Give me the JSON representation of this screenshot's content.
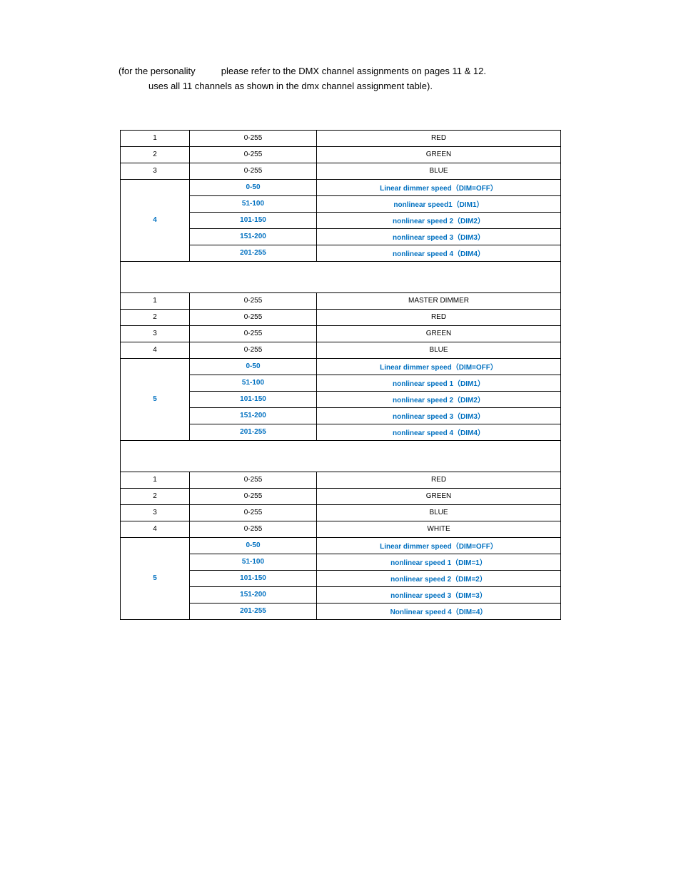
{
  "intro": {
    "line1a": "(for the personality",
    "line1b": "please refer to the DMX channel assignments on pages 11 & 12.",
    "line2": "uses all 11 channels as shown in the dmx channel assignment table)."
  },
  "colors": {
    "accent": "#0070c0",
    "text": "#000000",
    "border": "#000000",
    "bg": "#ffffff"
  },
  "section1": {
    "rows": [
      {
        "ch": "1",
        "val": "0-255",
        "fn": "RED",
        "blue": false,
        "rowspan": 1
      },
      {
        "ch": "2",
        "val": "0-255",
        "fn": "GREEN",
        "blue": false,
        "rowspan": 1
      },
      {
        "ch": "3",
        "val": "0-255",
        "fn": "BLUE",
        "blue": false,
        "rowspan": 1
      }
    ],
    "group": {
      "ch": "4",
      "items": [
        {
          "val": "0-50",
          "fn": "Linear dimmer speed（DIM=OFF）"
        },
        {
          "val": "51-100",
          "fn": "nonlinear speed1（DIM1）"
        },
        {
          "val": "101-150",
          "fn": "nonlinear speed 2（DIM2）"
        },
        {
          "val": "151-200",
          "fn": "nonlinear speed 3（DIM3）"
        },
        {
          "val": "201-255",
          "fn": "nonlinear speed 4（DIM4）"
        }
      ]
    }
  },
  "section2": {
    "rows": [
      {
        "ch": "1",
        "val": "0-255",
        "fn": "MASTER DIMMER",
        "blue": false
      },
      {
        "ch": "2",
        "val": "0-255",
        "fn": "RED",
        "blue": false
      },
      {
        "ch": "3",
        "val": "0-255",
        "fn": "GREEN",
        "blue": false
      },
      {
        "ch": "4",
        "val": "0-255",
        "fn": "BLUE",
        "blue": false
      }
    ],
    "group": {
      "ch": "5",
      "items": [
        {
          "val": "0-50",
          "fn": "Linear dimmer speed（DIM=OFF）"
        },
        {
          "val": "51-100",
          "fn": "nonlinear speed 1（DIM1）"
        },
        {
          "val": "101-150",
          "fn": "nonlinear speed 2（DIM2）"
        },
        {
          "val": "151-200",
          "fn": "nonlinear speed 3（DIM3）"
        },
        {
          "val": "201-255",
          "fn": "nonlinear speed 4（DIM4）"
        }
      ]
    }
  },
  "section3": {
    "rows": [
      {
        "ch": "1",
        "val": "0-255",
        "fn": "RED",
        "blue": false
      },
      {
        "ch": "2",
        "val": "0-255",
        "fn": "GREEN",
        "blue": false
      },
      {
        "ch": "3",
        "val": "0-255",
        "fn": "BLUE",
        "blue": false
      },
      {
        "ch": "4",
        "val": "0-255",
        "fn": "WHITE",
        "blue": false
      }
    ],
    "group": {
      "ch": "5",
      "items": [
        {
          "val": "0-50",
          "fn": "Linear dimmer speed（DIM=OFF）"
        },
        {
          "val": "51-100",
          "fn": "nonlinear speed 1（DIM=1）"
        },
        {
          "val": "101-150",
          "fn": "nonlinear speed 2（DIM=2）"
        },
        {
          "val": "151-200",
          "fn": "nonlinear speed 3（DIM=3）"
        },
        {
          "val": "201-255",
          "fn": "Nonlinear speed 4（DIM=4）"
        }
      ]
    }
  }
}
